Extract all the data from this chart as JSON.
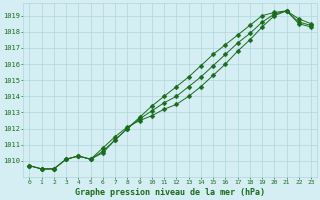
{
  "xlabel": "Graphe pression niveau de la mer (hPa)",
  "x": [
    0,
    1,
    2,
    3,
    4,
    5,
    6,
    7,
    8,
    9,
    10,
    11,
    12,
    13,
    14,
    15,
    16,
    17,
    18,
    19,
    20,
    21,
    22,
    23
  ],
  "y_upper": [
    1009.7,
    1009.5,
    1009.5,
    1010.1,
    1010.3,
    1010.1,
    1010.5,
    1011.3,
    1012.0,
    1012.7,
    1013.4,
    1014.0,
    1014.6,
    1015.2,
    1015.9,
    1016.6,
    1017.2,
    1017.8,
    1018.4,
    1019.0,
    1019.2,
    1019.3,
    1018.8,
    1018.5
  ],
  "y_lower": [
    1009.7,
    1009.5,
    1009.5,
    1010.1,
    1010.3,
    1010.1,
    1010.8,
    1011.5,
    1012.1,
    1012.5,
    1012.8,
    1013.2,
    1013.5,
    1014.0,
    1014.6,
    1015.3,
    1016.0,
    1016.8,
    1017.5,
    1018.3,
    1019.0,
    1019.3,
    1018.5,
    1018.3
  ],
  "y_mid": [
    1009.7,
    1009.5,
    1009.5,
    1010.1,
    1010.3,
    1010.1,
    1010.6,
    1011.3,
    1012.0,
    1012.6,
    1013.1,
    1013.6,
    1014.0,
    1014.6,
    1015.2,
    1015.9,
    1016.6,
    1017.3,
    1017.9,
    1018.6,
    1019.1,
    1019.3,
    1018.6,
    1018.4
  ],
  "line_color": "#1a6b1a",
  "bg_color": "#d4eef4",
  "grid_color": "#aed6dc",
  "tick_color": "#1a6b1a",
  "ylim": [
    1009.0,
    1019.8
  ],
  "yticks": [
    1010,
    1011,
    1012,
    1013,
    1014,
    1015,
    1016,
    1017,
    1018,
    1019
  ],
  "xticks": [
    0,
    1,
    2,
    3,
    4,
    5,
    6,
    7,
    8,
    9,
    10,
    11,
    12,
    13,
    14,
    15,
    16,
    17,
    18,
    19,
    20,
    21,
    22,
    23
  ]
}
